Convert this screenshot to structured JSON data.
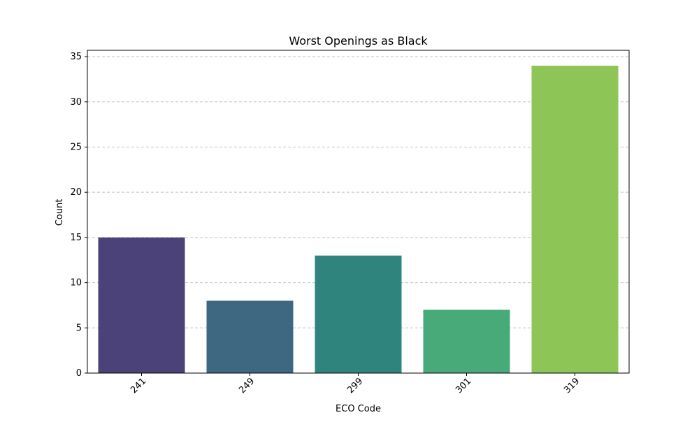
{
  "chart_data": {
    "type": "bar",
    "title": "Worst Openings as Black",
    "xlabel": "ECO Code",
    "ylabel": "Count",
    "categories": [
      "241",
      "249",
      "299",
      "301",
      "319"
    ],
    "values": [
      15,
      8,
      13,
      7,
      34
    ],
    "colors": [
      "#4b4279",
      "#3e6882",
      "#2f857e",
      "#47aa78",
      "#8ec557"
    ],
    "ylim": [
      0,
      35.7
    ],
    "yticks": [
      0,
      5,
      10,
      15,
      20,
      25,
      30,
      35
    ],
    "ytick_labels": [
      "0",
      "5",
      "10",
      "15",
      "20",
      "25",
      "30",
      "35"
    ],
    "grid": {
      "axis": "y",
      "style": "dashed",
      "color": "#c0c0c0"
    },
    "xtick_rotation_deg": 45,
    "legend": "none"
  }
}
